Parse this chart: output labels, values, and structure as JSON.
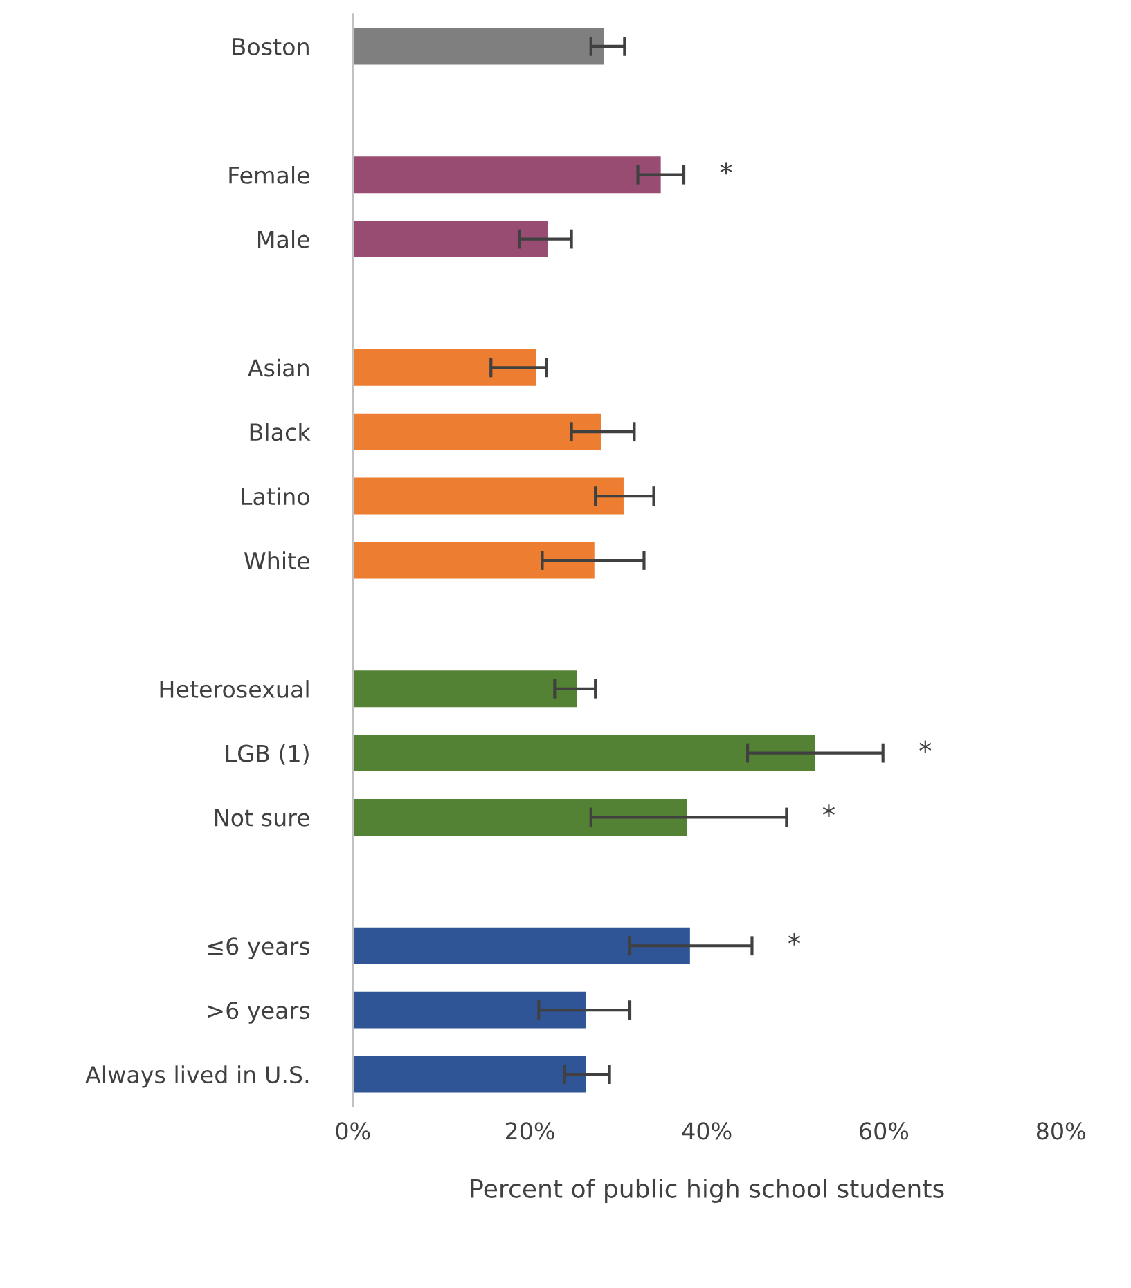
{
  "chart_data": {
    "type": "bar",
    "orientation": "horizontal",
    "xlabel": "Percent of public high school students",
    "categories": [
      "Boston",
      null,
      "Female",
      "Male",
      null,
      "Asian",
      "Black",
      "Latino",
      "White",
      null,
      "Heterosexual",
      "LGB (1)",
      "Not sure",
      null,
      "≤6 years",
      ">6 years",
      "Always lived in U.S."
    ],
    "values": [
      28.5,
      null,
      34.9,
      22.1,
      null,
      20.8,
      28.2,
      30.7,
      27.4,
      null,
      25.4,
      52.3,
      37.9,
      null,
      38.2,
      26.4,
      26.4
    ],
    "errors": [
      [
        26.9,
        30.7
      ],
      null,
      [
        32.2,
        37.4
      ],
      [
        18.8,
        24.7
      ],
      null,
      [
        15.6,
        21.9
      ],
      [
        24.7,
        31.8
      ],
      [
        27.4,
        34.0
      ],
      [
        21.4,
        32.9
      ],
      null,
      [
        22.8,
        27.4
      ],
      [
        44.6,
        59.9
      ],
      [
        26.9,
        49.0
      ],
      null,
      [
        31.3,
        45.1
      ],
      [
        21.0,
        31.3
      ],
      [
        23.9,
        29.0
      ]
    ],
    "colors": [
      "#7f7f7f",
      null,
      "#984c72",
      "#984c72",
      null,
      "#ed7d31",
      "#ed7d31",
      "#ed7d31",
      "#ed7d31",
      null,
      "#548235",
      "#548235",
      "#548235",
      null,
      "#2f5597",
      "#2f5597",
      "#2f5597"
    ],
    "xlim": [
      0,
      80
    ],
    "xticks": [
      {
        "value": 0,
        "label": "0%"
      },
      {
        "value": 20,
        "label": "20%"
      },
      {
        "value": 40,
        "label": "40%"
      },
      {
        "value": 60,
        "label": "60%"
      },
      {
        "value": 80,
        "label": "80%"
      }
    ],
    "annotations": [
      {
        "text": "*",
        "x": 37.4,
        "y": "Female"
      },
      {
        "text": "*",
        "x": 59.9,
        "y": "LGB (1)"
      },
      {
        "text": "*",
        "x": 49.0,
        "y": "Not sure"
      },
      {
        "text": "*",
        "x": 45.1,
        "y": "≤6 years"
      }
    ],
    "grid": false
  }
}
